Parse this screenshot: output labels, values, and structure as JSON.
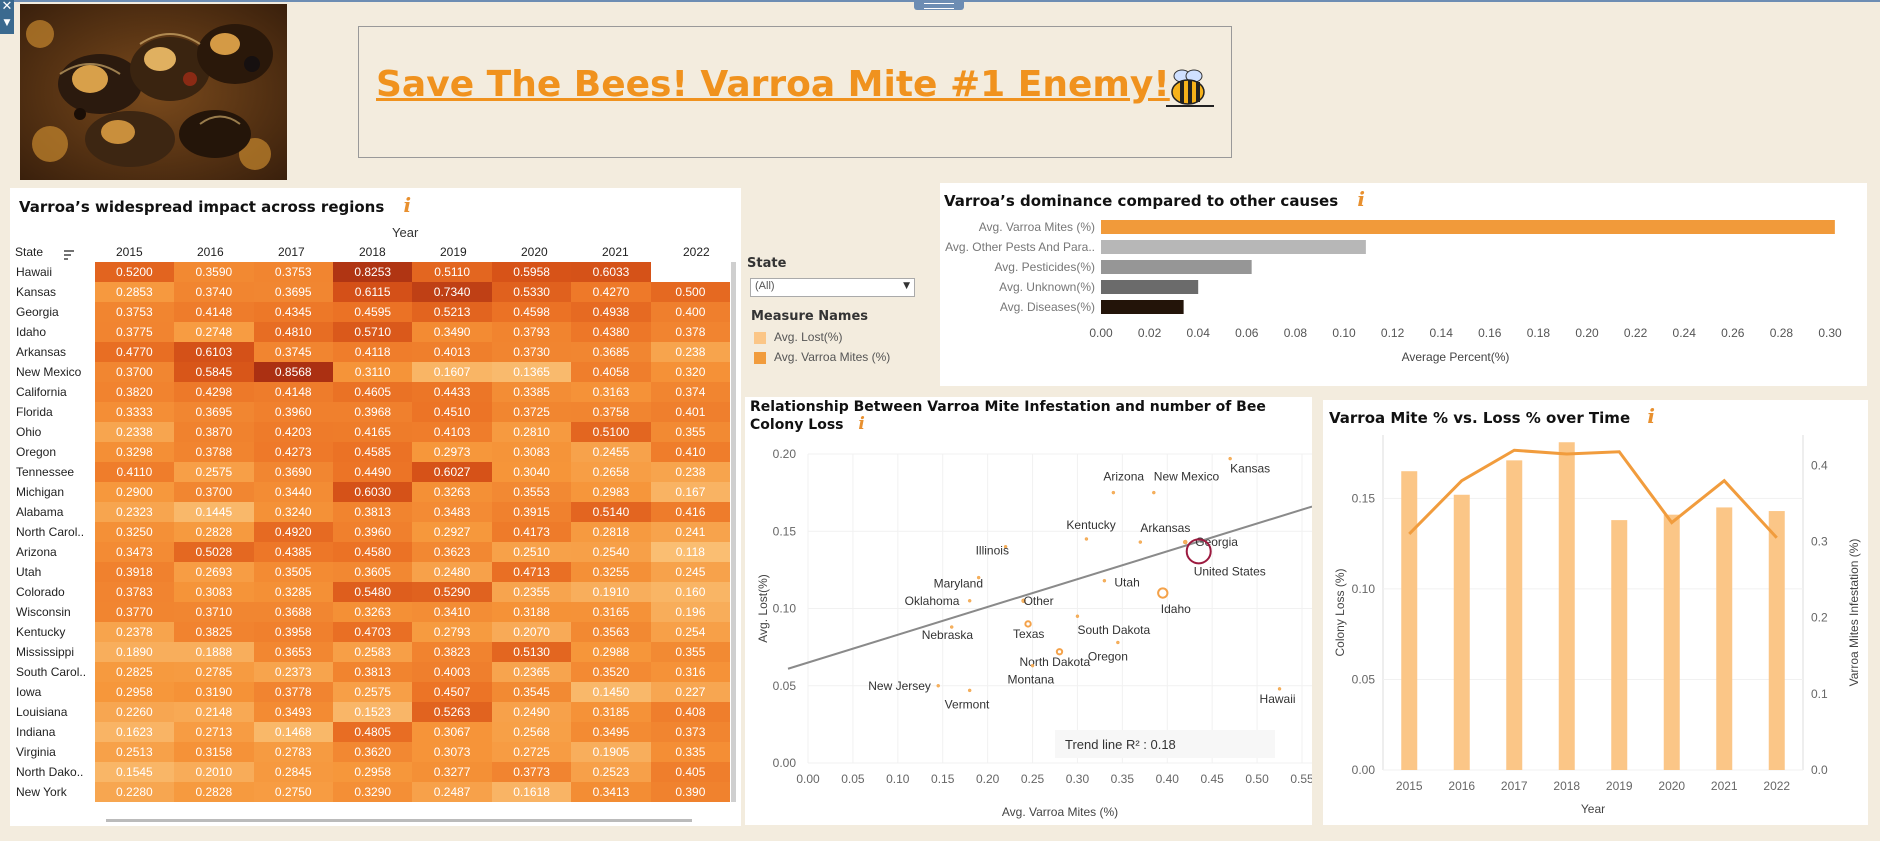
{
  "dashboard": {
    "title": "Save The Bees! Varroa Mite #1 Enemy!",
    "colors": {
      "background": "#f3ecde",
      "accent": "#f09a3a",
      "title": "#f0921e",
      "lost": "#fbc687",
      "mites": "#f19c3d"
    }
  },
  "heatmap": {
    "title": "Varroa’s widespread impact across regions",
    "info": "i",
    "year_header": "Year",
    "state_header": "State",
    "years": [
      "2015",
      "2016",
      "2017",
      "2018",
      "2019",
      "2020",
      "2021",
      "2022"
    ],
    "rows": [
      {
        "state": "Hawaii",
        "values": [
          0.52,
          0.359,
          0.3753,
          0.8253,
          0.511,
          0.5958,
          0.6033,
          null
        ],
        "labels": [
          "0.5200",
          "0.3590",
          "0.3753",
          "0.8253",
          "0.5110",
          "0.5958",
          "0.6033",
          ""
        ]
      },
      {
        "state": "Kansas",
        "values": [
          0.2853,
          0.374,
          0.3695,
          0.6115,
          0.734,
          0.533,
          0.427,
          0.5
        ],
        "labels": [
          "0.2853",
          "0.3740",
          "0.3695",
          "0.6115",
          "0.7340",
          "0.5330",
          "0.4270",
          "0.500"
        ]
      },
      {
        "state": "Georgia",
        "values": [
          0.3753,
          0.4148,
          0.4345,
          0.4595,
          0.5213,
          0.4598,
          0.4938,
          0.4
        ],
        "labels": [
          "0.3753",
          "0.4148",
          "0.4345",
          "0.4595",
          "0.5213",
          "0.4598",
          "0.4938",
          "0.400"
        ]
      },
      {
        "state": "Idaho",
        "values": [
          0.3775,
          0.2748,
          0.481,
          0.571,
          0.349,
          0.3793,
          0.438,
          0.378
        ],
        "labels": [
          "0.3775",
          "0.2748",
          "0.4810",
          "0.5710",
          "0.3490",
          "0.3793",
          "0.4380",
          "0.378"
        ]
      },
      {
        "state": "Arkansas",
        "values": [
          0.477,
          0.6103,
          0.3745,
          0.4118,
          0.4013,
          0.373,
          0.3685,
          0.238
        ],
        "labels": [
          "0.4770",
          "0.6103",
          "0.3745",
          "0.4118",
          "0.4013",
          "0.3730",
          "0.3685",
          "0.238"
        ]
      },
      {
        "state": "New Mexico",
        "values": [
          0.37,
          0.5845,
          0.8568,
          0.311,
          0.1607,
          0.1365,
          0.4058,
          0.32
        ],
        "labels": [
          "0.3700",
          "0.5845",
          "0.8568",
          "0.3110",
          "0.1607",
          "0.1365",
          "0.4058",
          "0.320"
        ]
      },
      {
        "state": "California",
        "values": [
          0.382,
          0.4298,
          0.4148,
          0.4605,
          0.4433,
          0.3385,
          0.3163,
          0.374
        ],
        "labels": [
          "0.3820",
          "0.4298",
          "0.4148",
          "0.4605",
          "0.4433",
          "0.3385",
          "0.3163",
          "0.374"
        ]
      },
      {
        "state": "Florida",
        "values": [
          0.3333,
          0.3695,
          0.396,
          0.3968,
          0.451,
          0.3725,
          0.3758,
          0.401
        ],
        "labels": [
          "0.3333",
          "0.3695",
          "0.3960",
          "0.3968",
          "0.4510",
          "0.3725",
          "0.3758",
          "0.401"
        ]
      },
      {
        "state": "Ohio",
        "values": [
          0.2338,
          0.387,
          0.4203,
          0.4165,
          0.4103,
          0.281,
          0.51,
          0.355
        ],
        "labels": [
          "0.2338",
          "0.3870",
          "0.4203",
          "0.4165",
          "0.4103",
          "0.2810",
          "0.5100",
          "0.355"
        ]
      },
      {
        "state": "Oregon",
        "values": [
          0.3298,
          0.3788,
          0.4273,
          0.4585,
          0.2973,
          0.3083,
          0.2455,
          0.41
        ],
        "labels": [
          "0.3298",
          "0.3788",
          "0.4273",
          "0.4585",
          "0.2973",
          "0.3083",
          "0.2455",
          "0.410"
        ]
      },
      {
        "state": "Tennessee",
        "values": [
          0.411,
          0.2575,
          0.369,
          0.449,
          0.6027,
          0.304,
          0.2658,
          0.238
        ],
        "labels": [
          "0.4110",
          "0.2575",
          "0.3690",
          "0.4490",
          "0.6027",
          "0.3040",
          "0.2658",
          "0.238"
        ]
      },
      {
        "state": "Michigan",
        "values": [
          0.29,
          0.37,
          0.344,
          0.603,
          0.3263,
          0.3553,
          0.2983,
          0.167
        ],
        "labels": [
          "0.2900",
          "0.3700",
          "0.3440",
          "0.6030",
          "0.3263",
          "0.3553",
          "0.2983",
          "0.167"
        ]
      },
      {
        "state": "Alabama",
        "values": [
          0.2323,
          0.1445,
          0.324,
          0.3813,
          0.3483,
          0.3915,
          0.514,
          0.416
        ],
        "labels": [
          "0.2323",
          "0.1445",
          "0.3240",
          "0.3813",
          "0.3483",
          "0.3915",
          "0.5140",
          "0.416"
        ]
      },
      {
        "state": "North Carol..",
        "values": [
          0.325,
          0.2828,
          0.492,
          0.396,
          0.2927,
          0.4173,
          0.2818,
          0.241
        ],
        "labels": [
          "0.3250",
          "0.2828",
          "0.4920",
          "0.3960",
          "0.2927",
          "0.4173",
          "0.2818",
          "0.241"
        ]
      },
      {
        "state": "Arizona",
        "values": [
          0.3473,
          0.5028,
          0.4385,
          0.458,
          0.3623,
          0.251,
          0.254,
          0.118
        ],
        "labels": [
          "0.3473",
          "0.5028",
          "0.4385",
          "0.4580",
          "0.3623",
          "0.2510",
          "0.2540",
          "0.118"
        ]
      },
      {
        "state": "Utah",
        "values": [
          0.3918,
          0.2693,
          0.3505,
          0.3605,
          0.248,
          0.4713,
          0.3255,
          0.245
        ],
        "labels": [
          "0.3918",
          "0.2693",
          "0.3505",
          "0.3605",
          "0.2480",
          "0.4713",
          "0.3255",
          "0.245"
        ]
      },
      {
        "state": "Colorado",
        "values": [
          0.3783,
          0.3083,
          0.3285,
          0.548,
          0.529,
          0.2355,
          0.191,
          0.16
        ],
        "labels": [
          "0.3783",
          "0.3083",
          "0.3285",
          "0.5480",
          "0.5290",
          "0.2355",
          "0.1910",
          "0.160"
        ]
      },
      {
        "state": "Wisconsin",
        "values": [
          0.377,
          0.371,
          0.3688,
          0.3263,
          0.341,
          0.3188,
          0.3165,
          0.196
        ],
        "labels": [
          "0.3770",
          "0.3710",
          "0.3688",
          "0.3263",
          "0.3410",
          "0.3188",
          "0.3165",
          "0.196"
        ]
      },
      {
        "state": "Kentucky",
        "values": [
          0.2378,
          0.3825,
          0.3958,
          0.4703,
          0.2793,
          0.207,
          0.3563,
          0.254
        ],
        "labels": [
          "0.2378",
          "0.3825",
          "0.3958",
          "0.4703",
          "0.2793",
          "0.2070",
          "0.3563",
          "0.254"
        ]
      },
      {
        "state": "Mississippi",
        "values": [
          0.189,
          0.1888,
          0.3653,
          0.2583,
          0.3823,
          0.513,
          0.2988,
          0.355
        ],
        "labels": [
          "0.1890",
          "0.1888",
          "0.3653",
          "0.2583",
          "0.3823",
          "0.5130",
          "0.2988",
          "0.355"
        ]
      },
      {
        "state": "South Carol..",
        "values": [
          0.2825,
          0.2785,
          0.2373,
          0.3813,
          0.4003,
          0.2365,
          0.352,
          0.316
        ],
        "labels": [
          "0.2825",
          "0.2785",
          "0.2373",
          "0.3813",
          "0.4003",
          "0.2365",
          "0.3520",
          "0.316"
        ]
      },
      {
        "state": "Iowa",
        "values": [
          0.2958,
          0.319,
          0.3778,
          0.2575,
          0.4507,
          0.3545,
          0.145,
          0.227
        ],
        "labels": [
          "0.2958",
          "0.3190",
          "0.3778",
          "0.2575",
          "0.4507",
          "0.3545",
          "0.1450",
          "0.227"
        ]
      },
      {
        "state": "Louisiana",
        "values": [
          0.226,
          0.2148,
          0.3493,
          0.1523,
          0.5263,
          0.249,
          0.3185,
          0.408
        ],
        "labels": [
          "0.2260",
          "0.2148",
          "0.3493",
          "0.1523",
          "0.5263",
          "0.2490",
          "0.3185",
          "0.408"
        ]
      },
      {
        "state": "Indiana",
        "values": [
          0.1623,
          0.2713,
          0.1468,
          0.4805,
          0.3067,
          0.2568,
          0.3495,
          0.373
        ],
        "labels": [
          "0.1623",
          "0.2713",
          "0.1468",
          "0.4805",
          "0.3067",
          "0.2568",
          "0.3495",
          "0.373"
        ]
      },
      {
        "state": "Virginia",
        "values": [
          0.2513,
          0.3158,
          0.2783,
          0.362,
          0.3073,
          0.2725,
          0.1905,
          0.335
        ],
        "labels": [
          "0.2513",
          "0.3158",
          "0.2783",
          "0.3620",
          "0.3073",
          "0.2725",
          "0.1905",
          "0.335"
        ]
      },
      {
        "state": "North Dako..",
        "values": [
          0.1545,
          0.201,
          0.2845,
          0.2958,
          0.3277,
          0.3773,
          0.2523,
          0.405
        ],
        "labels": [
          "0.1545",
          "0.2010",
          "0.2845",
          "0.2958",
          "0.3277",
          "0.3773",
          "0.2523",
          "0.405"
        ]
      },
      {
        "state": "New York",
        "values": [
          0.228,
          0.2828,
          0.275,
          0.329,
          0.2487,
          0.1618,
          0.3413,
          0.39
        ],
        "labels": [
          "0.2280",
          "0.2828",
          "0.2750",
          "0.3290",
          "0.2487",
          "0.1618",
          "0.3413",
          "0.390"
        ]
      }
    ]
  },
  "filters": {
    "state_label": "State",
    "state_value": "(All)",
    "legend_title": "Measure Names",
    "legend_items": [
      {
        "label": "Avg. Lost(%)",
        "color": "#fbc687"
      },
      {
        "label": "Avg. Varroa Mites (%)",
        "color": "#f19c3d"
      }
    ]
  },
  "chart_data": [
    {
      "type": "bar",
      "title": "Varroa’s dominance compared to other causes",
      "orientation": "horizontal",
      "categories": [
        "Avg. Varroa Mites (%)",
        "Avg. Other Pests And Para..",
        "Avg. Pesticides(%)",
        "Avg. Unknown(%)",
        "Avg. Diseases(%)"
      ],
      "values": [
        0.302,
        0.109,
        0.062,
        0.04,
        0.034
      ],
      "colors": [
        "#f19a3a",
        "#b7b7b7",
        "#969696",
        "#6b6b6b",
        "#231409"
      ],
      "xlabel": "Average Percent(%)",
      "xlim": [
        0,
        0.3
      ],
      "xticks": [
        "0.00",
        "0.02",
        "0.04",
        "0.06",
        "0.08",
        "0.10",
        "0.12",
        "0.14",
        "0.16",
        "0.18",
        "0.20",
        "0.22",
        "0.24",
        "0.26",
        "0.28",
        "0.30"
      ]
    },
    {
      "type": "scatter",
      "title": "Relationship Between Varroa Mite Infestation and number of Bee Colony Loss",
      "xlabel": "Avg. Varroa Mites (%)",
      "ylabel": "Avg. Lost(%)",
      "xlim": [
        0,
        0.55
      ],
      "ylim": [
        0,
        0.2
      ],
      "xticks": [
        "0.00",
        "0.05",
        "0.10",
        "0.15",
        "0.20",
        "0.25",
        "0.30",
        "0.35",
        "0.40",
        "0.45",
        "0.50",
        "0.55"
      ],
      "yticks": [
        "0.00",
        "0.05",
        "0.10",
        "0.15",
        "0.20"
      ],
      "trend_line": {
        "x": [
          0,
          0.55
        ],
        "y": [
          0.065,
          0.156
        ]
      },
      "trend_label": "Trend line R² : 0.18",
      "points": [
        {
          "label": "Kansas",
          "x": 0.47,
          "y": 0.197,
          "size": 2
        },
        {
          "label": "Arizona",
          "x": 0.34,
          "y": 0.175,
          "size": 2
        },
        {
          "label": "New Mexico",
          "x": 0.385,
          "y": 0.175,
          "size": 2
        },
        {
          "label": "Kentucky",
          "x": 0.31,
          "y": 0.145,
          "size": 2
        },
        {
          "label": "Arkansas",
          "x": 0.37,
          "y": 0.143,
          "size": 2
        },
        {
          "label": "Georgia",
          "x": 0.42,
          "y": 0.143,
          "size": 3
        },
        {
          "label": "United States",
          "x": 0.435,
          "y": 0.137,
          "size": 12,
          "highlight": true
        },
        {
          "label": "Illinois",
          "x": 0.22,
          "y": 0.14,
          "size": 2
        },
        {
          "label": "Maryland",
          "x": 0.19,
          "y": 0.12,
          "size": 2
        },
        {
          "label": "Utah",
          "x": 0.33,
          "y": 0.118,
          "size": 2
        },
        {
          "label": "Idaho",
          "x": 0.395,
          "y": 0.11,
          "size": 7
        },
        {
          "label": "Oklahoma",
          "x": 0.18,
          "y": 0.105,
          "size": 2
        },
        {
          "label": "Other",
          "x": 0.24,
          "y": 0.105,
          "size": 3
        },
        {
          "label": "South Dakota",
          "x": 0.3,
          "y": 0.095,
          "size": 2
        },
        {
          "label": "Texas",
          "x": 0.245,
          "y": 0.09,
          "size": 4
        },
        {
          "label": "Nebraska",
          "x": 0.16,
          "y": 0.088,
          "size": 2
        },
        {
          "label": "Oregon",
          "x": 0.345,
          "y": 0.078,
          "size": 2
        },
        {
          "label": "North Dakota",
          "x": 0.28,
          "y": 0.072,
          "size": 4
        },
        {
          "label": "Montana",
          "x": 0.25,
          "y": 0.063,
          "size": 2
        },
        {
          "label": "New Jersey",
          "x": 0.145,
          "y": 0.05,
          "size": 2
        },
        {
          "label": "Vermont",
          "x": 0.18,
          "y": 0.047,
          "size": 2
        },
        {
          "label": "Hawaii",
          "x": 0.525,
          "y": 0.048,
          "size": 2
        }
      ]
    },
    {
      "type": "bar+line",
      "title": "Varroa Mite % vs. Loss % over Time",
      "xlabel": "Year",
      "ylabel": "Colony Loss (%)",
      "y2label": "Varroa Mites Infestation (%)",
      "categories": [
        "2015",
        "2016",
        "2017",
        "2018",
        "2019",
        "2020",
        "2021",
        "2022"
      ],
      "series": [
        {
          "name": "Colony Loss (%)",
          "type": "bar",
          "axis": "left",
          "values": [
            0.165,
            0.152,
            0.171,
            0.181,
            0.138,
            0.141,
            0.145,
            0.143
          ]
        },
        {
          "name": "Varroa Mites Infestation (%)",
          "type": "line",
          "axis": "right",
          "values": [
            0.31,
            0.38,
            0.42,
            0.415,
            0.418,
            0.325,
            0.38,
            0.305
          ]
        }
      ],
      "ylim": [
        0,
        0.185
      ],
      "y2lim": [
        0,
        0.44
      ],
      "yticks": [
        "0.00",
        "0.05",
        "0.10",
        "0.15"
      ],
      "y2ticks": [
        "0.0",
        "0.1",
        "0.2",
        "0.3",
        "0.4"
      ]
    }
  ]
}
